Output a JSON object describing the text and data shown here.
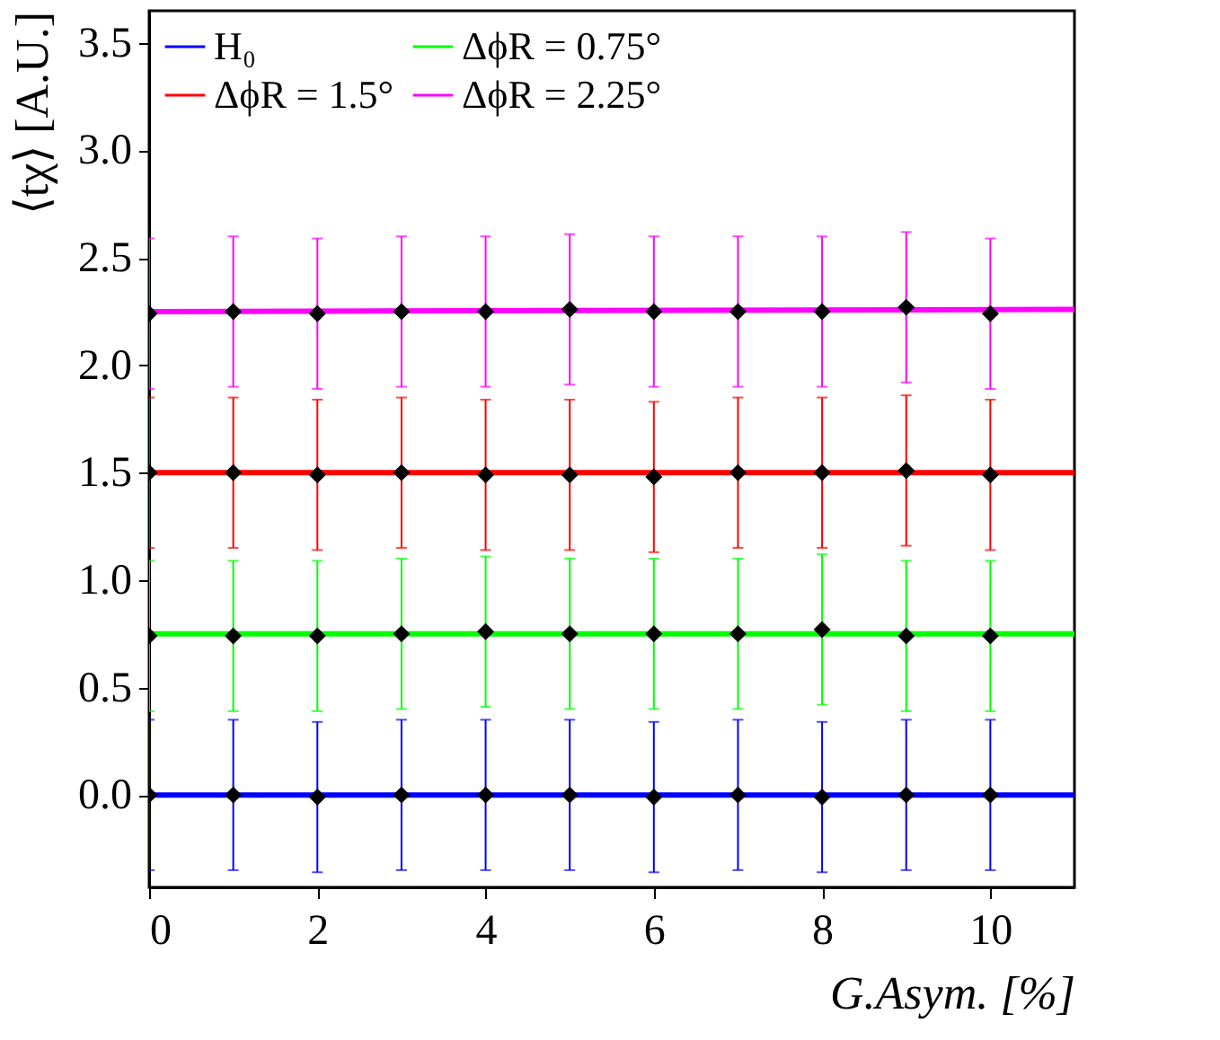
{
  "chart_data": {
    "type": "scatter",
    "xlabel": "G.Asym. [%]",
    "ylabel": "⟨tχ⟩ [A.U.]",
    "xlim": [
      0,
      11
    ],
    "ylim": [
      -0.43,
      3.65
    ],
    "xticks": [
      0,
      2,
      4,
      6,
      8,
      10
    ],
    "yticks": [
      {
        "value": 0,
        "label": "0.0"
      },
      0.5,
      {
        "value": 1,
        "label": "1.0"
      },
      1.5,
      {
        "value": 2,
        "label": "2.0"
      },
      2.5,
      {
        "value": 3,
        "label": "3.0"
      },
      3.5
    ],
    "grid": false,
    "legend": "top left",
    "series": [
      {
        "name": "H₀",
        "type": "line",
        "marker": "none",
        "color": "#0000ff",
        "x": [
          0,
          11
        ],
        "values": [
          0,
          0
        ]
      },
      {
        "name": "ΔϕR = 0.75°",
        "type": "line",
        "marker": "none",
        "color": "#00ff00",
        "x": [
          0,
          11
        ],
        "values": [
          0.75,
          0.75
        ]
      },
      {
        "name": "ΔϕR = 1.5°",
        "type": "line",
        "marker": "none",
        "color": "#ff0000",
        "x": [
          0,
          11
        ],
        "values": [
          1.5,
          1.5
        ]
      },
      {
        "name": "ΔϕR = 2.25°",
        "type": "line",
        "marker": "none",
        "color": "#ff00ff",
        "x": [
          0,
          11
        ],
        "values": [
          2.25,
          2.26
        ]
      },
      {
        "marker": "diamond",
        "color": "#000000",
        "x": [
          0,
          1,
          2,
          3,
          4,
          5,
          6,
          7,
          8,
          9,
          10
        ],
        "values": [
          0.0,
          0.0,
          -0.01,
          0.0,
          0.0,
          0.0,
          -0.01,
          0.0,
          -0.01,
          0.0,
          0.0
        ],
        "errors": [
          0.35,
          0.35,
          0.35,
          0.35,
          0.35,
          0.35,
          0.35,
          0.35,
          0.35,
          0.35,
          0.35
        ]
      },
      {
        "marker": "diamond",
        "color": "#000000",
        "x": [
          0,
          1,
          2,
          3,
          4,
          5,
          6,
          7,
          8,
          9,
          10
        ],
        "values": [
          0.74,
          0.74,
          0.74,
          0.75,
          0.76,
          0.75,
          0.75,
          0.75,
          0.77,
          0.74,
          0.74
        ],
        "errors": [
          0.35,
          0.35,
          0.35,
          0.35,
          0.35,
          0.35,
          0.35,
          0.35,
          0.35,
          0.35,
          0.35
        ]
      },
      {
        "marker": "diamond",
        "color": "#000000",
        "x": [
          0,
          1,
          2,
          3,
          4,
          5,
          6,
          7,
          8,
          9,
          10
        ],
        "values": [
          1.5,
          1.5,
          1.49,
          1.5,
          1.49,
          1.49,
          1.48,
          1.5,
          1.5,
          1.51,
          1.49
        ],
        "errors": [
          0.35,
          0.35,
          0.35,
          0.35,
          0.35,
          0.35,
          0.35,
          0.35,
          0.35,
          0.35,
          0.35
        ]
      },
      {
        "marker": "diamond",
        "color": "#000000",
        "x": [
          0,
          1,
          2,
          3,
          4,
          5,
          6,
          7,
          8,
          9,
          10
        ],
        "values": [
          2.24,
          2.25,
          2.24,
          2.25,
          2.25,
          2.26,
          2.25,
          2.25,
          2.25,
          2.27,
          2.24
        ],
        "errors": [
          0.35,
          0.35,
          0.35,
          0.35,
          0.35,
          0.35,
          0.35,
          0.35,
          0.35,
          0.35,
          0.35
        ]
      }
    ]
  }
}
